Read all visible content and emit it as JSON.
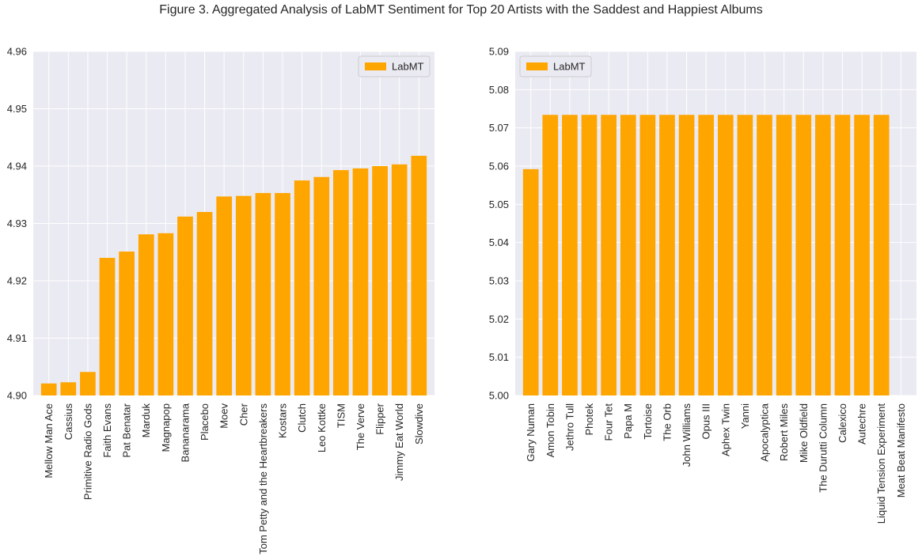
{
  "figure_title": "Figure 3. Aggregated Analysis of LabMT Sentiment for Top 20 Artists with the Saddest and Happiest Albums",
  "colors": {
    "bar": "#FFA500",
    "plot_bg": "#EAEAF2",
    "grid": "#FFFFFF",
    "text": "#262626"
  },
  "chart_data": [
    {
      "type": "bar",
      "title": "",
      "xlabel": "",
      "ylabel": "",
      "ylim": [
        4.9,
        4.96
      ],
      "yticks": [
        "4.90",
        "4.91",
        "4.92",
        "4.93",
        "4.94",
        "4.95",
        "4.96"
      ],
      "legend": {
        "label": "LabMT",
        "placement": "upper right"
      },
      "grid": true,
      "categories": [
        "Mellow Man Ace",
        "Cassius",
        "Primitive Radio Gods",
        "Faith Evans",
        "Pat Benatar",
        "Marduk",
        "Magnapop",
        "Bananarama",
        "Placebo",
        "Moev",
        "Cher",
        "Tom Petty and the Heartbreakers",
        "Kostars",
        "Clutch",
        "Leo Kottke",
        "TISM",
        "The Verve",
        "Flipper",
        "Jimmy Eat World",
        "Slowdive"
      ],
      "series": [
        {
          "name": "LabMT",
          "values": [
            4.9021,
            4.9023,
            4.9041,
            4.924,
            4.9251,
            4.9281,
            4.9283,
            4.9312,
            4.932,
            4.9347,
            4.9348,
            4.9353,
            4.9353,
            4.9375,
            4.9381,
            4.9393,
            4.9396,
            4.94,
            4.9403,
            4.9418
          ]
        }
      ]
    },
    {
      "type": "bar",
      "title": "",
      "xlabel": "",
      "ylabel": "",
      "ylim": [
        5.0,
        5.09
      ],
      "yticks": [
        "5.00",
        "5.01",
        "5.02",
        "5.03",
        "5.04",
        "5.05",
        "5.06",
        "5.07",
        "5.08",
        "5.09"
      ],
      "legend": {
        "label": "LabMT",
        "placement": "upper left"
      },
      "grid": true,
      "categories": [
        "Gary Numan",
        "Amon Tobin",
        "Jethro Tull",
        "Photek",
        "Four Tet",
        "Papa M",
        "Tortoise",
        "The Orb",
        "John Williams",
        "Opus III",
        "Aphex Twin",
        "Yanni",
        "Apocalyptica",
        "Robert Miles",
        "Mike Oldfield",
        "The Durutti Column",
        "Calexico",
        "Autechre",
        "Liquid Tension Experiment",
        "Meat Beat Manifesto"
      ],
      "series": [
        {
          "name": "LabMT",
          "values": [
            5.0592,
            5.0734,
            5.0734,
            5.0734,
            5.0734,
            5.0734,
            5.0734,
            5.0734,
            5.0734,
            5.0734,
            5.0734,
            5.0734,
            5.0734,
            5.0734,
            5.0734,
            5.0734,
            5.0734,
            5.0734,
            5.0734,
            5.0
          ]
        }
      ]
    }
  ]
}
